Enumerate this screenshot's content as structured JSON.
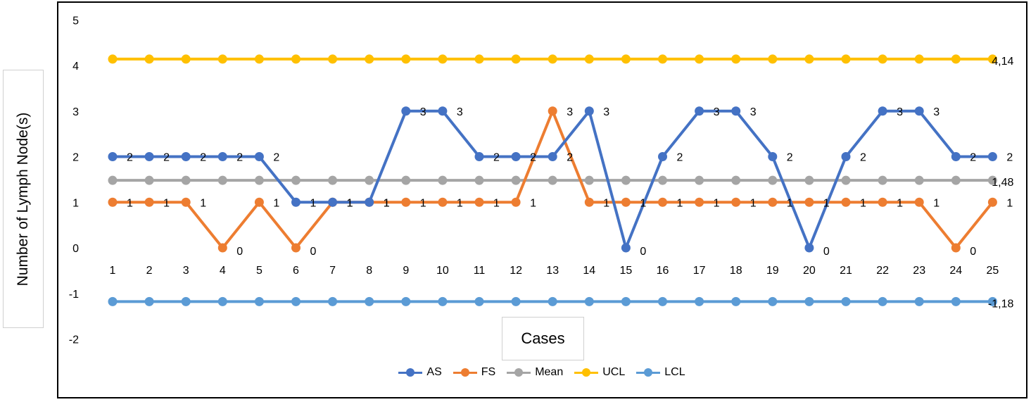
{
  "chart_data": {
    "type": "line",
    "title": "",
    "xlabel": "Cases",
    "ylabel": "Number of Lymph Node(s)",
    "ylim": [
      -2,
      5
    ],
    "yticks": [
      "5",
      "4",
      "3",
      "2",
      "1",
      "0",
      "-1",
      "-2"
    ],
    "categories": [
      "1",
      "2",
      "3",
      "4",
      "5",
      "6",
      "7",
      "8",
      "9",
      "10",
      "11",
      "12",
      "13",
      "14",
      "15",
      "16",
      "17",
      "18",
      "19",
      "20",
      "21",
      "22",
      "23",
      "24",
      "25"
    ],
    "series": [
      {
        "name": "AS",
        "color": "#4472C4",
        "values": [
          2,
          2,
          2,
          2,
          2,
          1,
          1,
          1,
          3,
          3,
          2,
          2,
          2,
          3,
          0,
          2,
          3,
          3,
          2,
          0,
          2,
          3,
          3,
          2,
          2
        ],
        "labels": [
          "2",
          "2",
          "2",
          "2",
          "2",
          "1",
          "1",
          "1",
          "3",
          "3",
          "2",
          "2",
          "2",
          "3",
          "0",
          "2",
          "3",
          "3",
          "2",
          "0",
          "2",
          "3",
          "3",
          "2",
          "2"
        ]
      },
      {
        "name": "FS",
        "color": "#ED7D31",
        "values": [
          1,
          1,
          1,
          0,
          1,
          0,
          1,
          1,
          1,
          1,
          1,
          1,
          3,
          1,
          1,
          1,
          1,
          1,
          1,
          1,
          1,
          1,
          1,
          0,
          1
        ],
        "labels": [
          "1",
          "1",
          "1",
          "0",
          "1",
          "0",
          "1",
          "1",
          "1",
          "1",
          "1",
          "1",
          "3",
          "1",
          "1",
          "1",
          "1",
          "1",
          "1",
          "1",
          "1",
          "1",
          "1",
          "0",
          "1"
        ]
      },
      {
        "name": "Mean",
        "color": "#A5A5A5",
        "values": [
          1.48,
          1.48,
          1.48,
          1.48,
          1.48,
          1.48,
          1.48,
          1.48,
          1.48,
          1.48,
          1.48,
          1.48,
          1.48,
          1.48,
          1.48,
          1.48,
          1.48,
          1.48,
          1.48,
          1.48,
          1.48,
          1.48,
          1.48,
          1.48,
          1.48
        ],
        "end_label": "1,48"
      },
      {
        "name": "UCL",
        "color": "#FFC000",
        "values": [
          4.14,
          4.14,
          4.14,
          4.14,
          4.14,
          4.14,
          4.14,
          4.14,
          4.14,
          4.14,
          4.14,
          4.14,
          4.14,
          4.14,
          4.14,
          4.14,
          4.14,
          4.14,
          4.14,
          4.14,
          4.14,
          4.14,
          4.14,
          4.14,
          4.14
        ],
        "end_label": "4,14"
      },
      {
        "name": "LCL",
        "color": "#5B9BD5",
        "values": [
          -1.18,
          -1.18,
          -1.18,
          -1.18,
          -1.18,
          -1.18,
          -1.18,
          -1.18,
          -1.18,
          -1.18,
          -1.18,
          -1.18,
          -1.18,
          -1.18,
          -1.18,
          -1.18,
          -1.18,
          -1.18,
          -1.18,
          -1.18,
          -1.18,
          -1.18,
          -1.18,
          -1.18,
          -1.18
        ],
        "end_label": "-1,18"
      }
    ],
    "legend_position": "bottom",
    "grid": false
  }
}
